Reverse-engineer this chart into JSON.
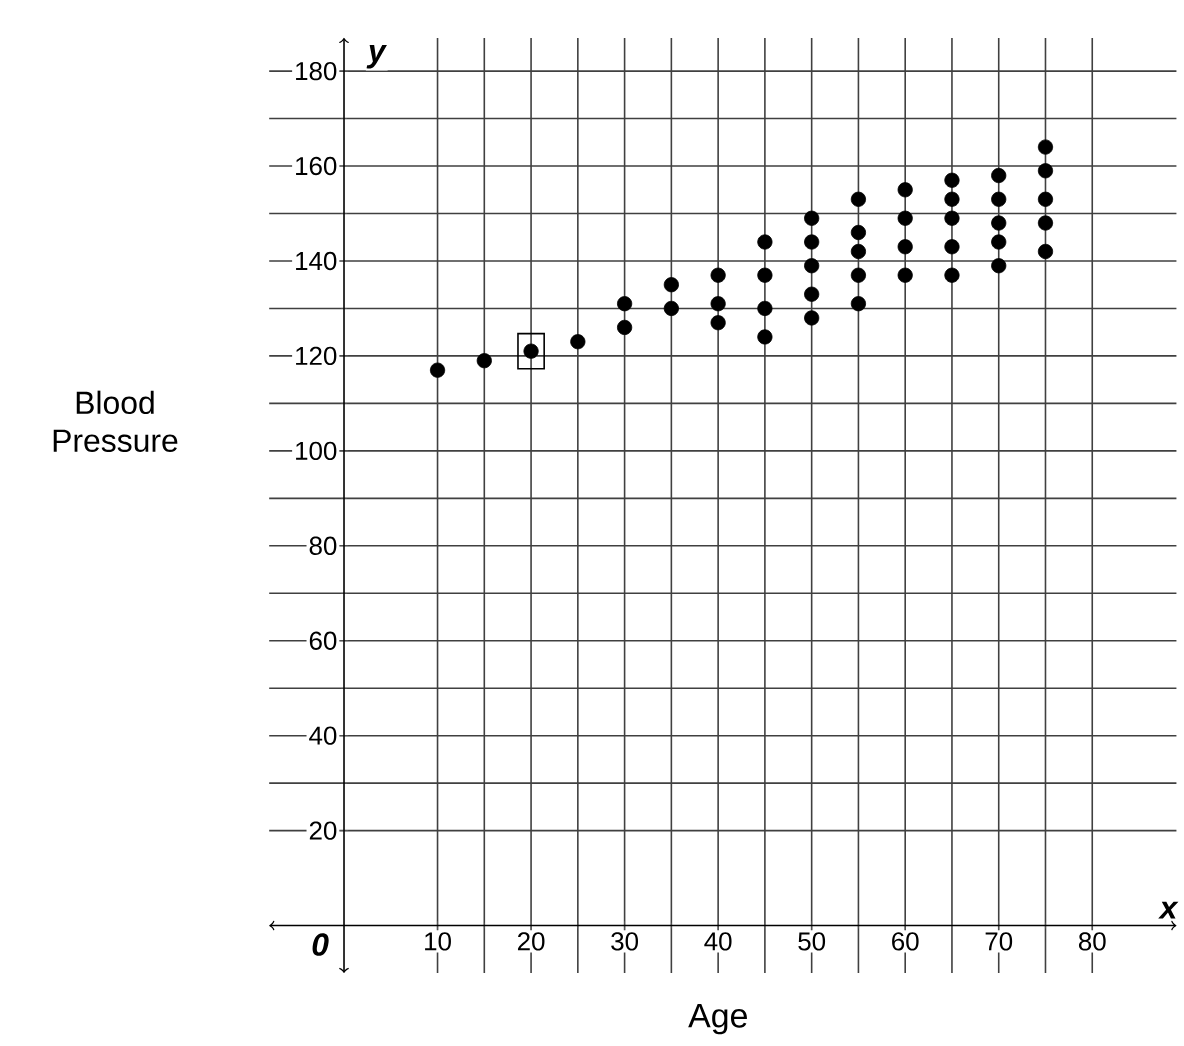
{
  "chart_data": {
    "type": "scatter",
    "xlabel": "Age",
    "ylabel": "Blood Pressure",
    "annotations": [
      "y",
      "x",
      "0"
    ],
    "xlim": [
      -8,
      89
    ],
    "ylim": [
      -10,
      187
    ],
    "xticks": [
      10,
      20,
      30,
      40,
      50,
      60,
      70,
      80
    ],
    "yticks": [
      20,
      40,
      60,
      80,
      100,
      120,
      140,
      160,
      180
    ],
    "grid": true,
    "series": [
      {
        "color": "#000000",
        "marker": "circle",
        "x": [
          10,
          15,
          20,
          25,
          30,
          30,
          35,
          35,
          40,
          40,
          40,
          45,
          45,
          45,
          45,
          50,
          50,
          50,
          50,
          50,
          55,
          55,
          55,
          55,
          55,
          60,
          60,
          60,
          60,
          65,
          65,
          65,
          65,
          65,
          70,
          70,
          70,
          70,
          70,
          75,
          75,
          75,
          75,
          75
        ],
        "values": [
          117,
          119,
          121,
          123,
          131,
          126,
          135,
          130,
          137,
          131,
          127,
          144,
          137,
          130,
          124,
          149,
          144,
          139,
          133,
          128,
          153,
          146,
          142,
          137,
          131,
          155,
          149,
          143,
          137,
          157,
          153,
          149,
          143,
          137,
          158,
          153,
          148,
          144,
          139,
          164,
          159,
          153,
          148,
          142
        ]
      }
    ]
  }
}
